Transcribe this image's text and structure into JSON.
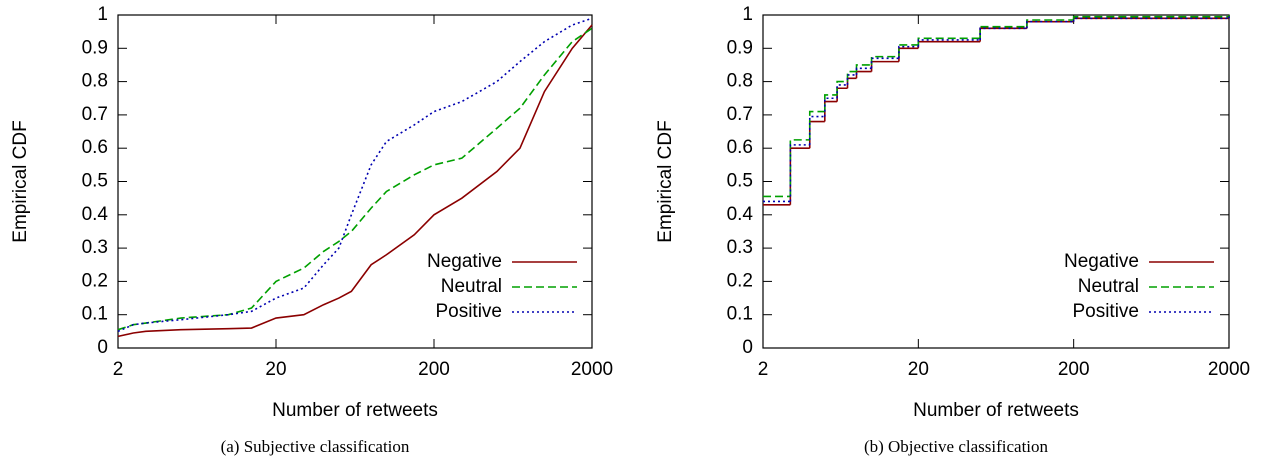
{
  "chart_data": [
    {
      "type": "line",
      "step": false,
      "log_x": true,
      "legend": "lower right",
      "xlabel": "Number of retweets",
      "ylabel": "Empirical CDF",
      "caption": "(a) Subjective classification",
      "xlim": [
        2,
        2000
      ],
      "ylim": [
        0,
        1
      ],
      "xticks": [
        2,
        20,
        200,
        2000
      ],
      "yticks": [
        0,
        0.1,
        0.2,
        0.3,
        0.4,
        0.5,
        0.6,
        0.7,
        0.8,
        0.9,
        1
      ],
      "x": [
        2,
        2.5,
        3,
        5,
        10,
        14,
        20,
        30,
        40,
        50,
        60,
        80,
        100,
        150,
        200,
        300,
        500,
        700,
        1000,
        1500,
        2000
      ],
      "series": [
        {
          "name": "Negative",
          "color": "#8b0000",
          "dash": "solid",
          "values": [
            0.035,
            0.045,
            0.05,
            0.055,
            0.058,
            0.06,
            0.09,
            0.1,
            0.13,
            0.15,
            0.17,
            0.25,
            0.28,
            0.34,
            0.4,
            0.45,
            0.53,
            0.6,
            0.77,
            0.9,
            0.97
          ]
        },
        {
          "name": "Neutral",
          "color": "#00a000",
          "dash": "dashed",
          "values": [
            0.055,
            0.07,
            0.075,
            0.09,
            0.1,
            0.12,
            0.2,
            0.24,
            0.29,
            0.32,
            0.35,
            0.42,
            0.47,
            0.52,
            0.55,
            0.57,
            0.66,
            0.72,
            0.82,
            0.92,
            0.96
          ]
        },
        {
          "name": "Positive",
          "color": "#0000b0",
          "dash": "dotted",
          "values": [
            0.05,
            0.07,
            0.075,
            0.085,
            0.1,
            0.11,
            0.15,
            0.18,
            0.25,
            0.3,
            0.4,
            0.55,
            0.62,
            0.67,
            0.71,
            0.74,
            0.8,
            0.86,
            0.92,
            0.97,
            0.99
          ]
        }
      ]
    },
    {
      "type": "line",
      "step": true,
      "log_x": true,
      "legend": "lower right",
      "xlabel": "Number of retweets",
      "ylabel": "Empirical CDF",
      "caption": "(b) Objective classification",
      "xlim": [
        2,
        2000
      ],
      "ylim": [
        0,
        1
      ],
      "xticks": [
        2,
        20,
        200,
        2000
      ],
      "yticks": [
        0,
        0.1,
        0.2,
        0.3,
        0.4,
        0.5,
        0.6,
        0.7,
        0.8,
        0.9,
        1
      ],
      "x": [
        2,
        3,
        4,
        5,
        6,
        7,
        8,
        10,
        15,
        20,
        50,
        100,
        200,
        2000
      ],
      "series": [
        {
          "name": "Negative",
          "color": "#8b0000",
          "dash": "solid",
          "values": [
            0.43,
            0.6,
            0.68,
            0.74,
            0.78,
            0.81,
            0.83,
            0.86,
            0.9,
            0.92,
            0.96,
            0.98,
            0.99,
            1
          ]
        },
        {
          "name": "Neutral",
          "color": "#00a000",
          "dash": "dashed",
          "values": [
            0.455,
            0.625,
            0.71,
            0.76,
            0.8,
            0.83,
            0.85,
            0.875,
            0.91,
            0.93,
            0.965,
            0.985,
            0.995,
            1
          ]
        },
        {
          "name": "Positive",
          "color": "#0000b0",
          "dash": "dotted",
          "values": [
            0.44,
            0.61,
            0.695,
            0.75,
            0.79,
            0.82,
            0.84,
            0.87,
            0.905,
            0.925,
            0.96,
            0.98,
            0.99,
            1
          ]
        }
      ]
    }
  ]
}
